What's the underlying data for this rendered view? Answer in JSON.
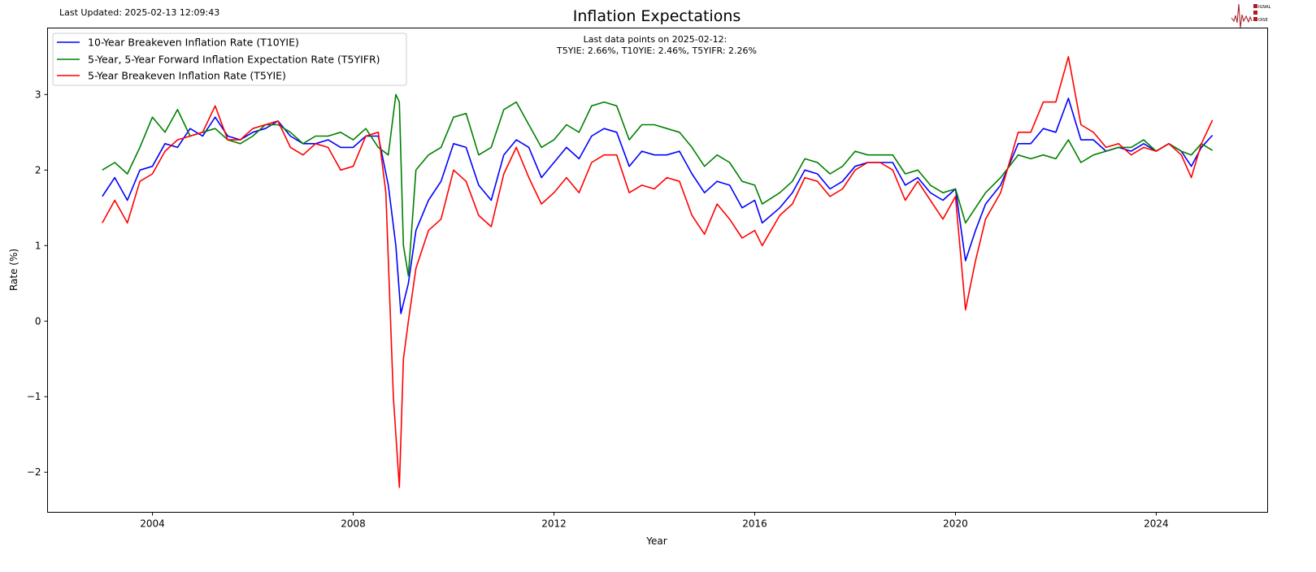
{
  "header": {
    "last_updated": "Last Updated: 2025-02-13 12:09:43",
    "logo_text": "SIGNAL 2 NOISE"
  },
  "chart_data": {
    "type": "line",
    "title": "Inflation Expectations",
    "xlabel": "Year",
    "ylabel": "Rate (%)",
    "xlim": [
      2001.91,
      2026.22
    ],
    "ylim": [
      -2.53,
      3.88
    ],
    "xticks": [
      2004,
      2008,
      2012,
      2016,
      2020,
      2024
    ],
    "xtick_labels": [
      "2004",
      "2008",
      "2012",
      "2016",
      "2020",
      "2024"
    ],
    "yticks": [
      -2,
      -1,
      0,
      1,
      2,
      3
    ],
    "ytick_labels": [
      "−2",
      "−1",
      "0",
      "1",
      "2",
      "3"
    ],
    "grid": false,
    "legend_position": "top-left",
    "annotation": {
      "line1": "Last data points on 2025-02-12:",
      "line2": "T5YIE: 2.66%, T10YIE: 2.46%, T5YIFR: 2.26%"
    },
    "series": [
      {
        "name": "10-Year Breakeven Inflation Rate (T10YIE)",
        "color": "#0000ff",
        "points": [
          [
            2003.0,
            1.65
          ],
          [
            2003.25,
            1.9
          ],
          [
            2003.5,
            1.6
          ],
          [
            2003.75,
            2.0
          ],
          [
            2004.0,
            2.05
          ],
          [
            2004.25,
            2.35
          ],
          [
            2004.5,
            2.3
          ],
          [
            2004.75,
            2.55
          ],
          [
            2005.0,
            2.45
          ],
          [
            2005.25,
            2.7
          ],
          [
            2005.5,
            2.45
          ],
          [
            2005.75,
            2.4
          ],
          [
            2006.0,
            2.5
          ],
          [
            2006.25,
            2.55
          ],
          [
            2006.5,
            2.65
          ],
          [
            2006.75,
            2.45
          ],
          [
            2007.0,
            2.35
          ],
          [
            2007.25,
            2.35
          ],
          [
            2007.5,
            2.4
          ],
          [
            2007.75,
            2.3
          ],
          [
            2008.0,
            2.3
          ],
          [
            2008.25,
            2.45
          ],
          [
            2008.5,
            2.45
          ],
          [
            2008.7,
            1.8
          ],
          [
            2008.85,
            1.0
          ],
          [
            2008.95,
            0.1
          ],
          [
            2009.1,
            0.5
          ],
          [
            2009.25,
            1.2
          ],
          [
            2009.5,
            1.6
          ],
          [
            2009.75,
            1.85
          ],
          [
            2010.0,
            2.35
          ],
          [
            2010.25,
            2.3
          ],
          [
            2010.5,
            1.8
          ],
          [
            2010.75,
            1.6
          ],
          [
            2011.0,
            2.2
          ],
          [
            2011.25,
            2.4
          ],
          [
            2011.5,
            2.3
          ],
          [
            2011.75,
            1.9
          ],
          [
            2012.0,
            2.1
          ],
          [
            2012.25,
            2.3
          ],
          [
            2012.5,
            2.15
          ],
          [
            2012.75,
            2.45
          ],
          [
            2013.0,
            2.55
          ],
          [
            2013.25,
            2.5
          ],
          [
            2013.5,
            2.05
          ],
          [
            2013.75,
            2.25
          ],
          [
            2014.0,
            2.2
          ],
          [
            2014.25,
            2.2
          ],
          [
            2014.5,
            2.25
          ],
          [
            2014.75,
            1.95
          ],
          [
            2015.0,
            1.7
          ],
          [
            2015.25,
            1.85
          ],
          [
            2015.5,
            1.8
          ],
          [
            2015.75,
            1.5
          ],
          [
            2016.0,
            1.6
          ],
          [
            2016.15,
            1.3
          ],
          [
            2016.5,
            1.5
          ],
          [
            2016.75,
            1.7
          ],
          [
            2017.0,
            2.0
          ],
          [
            2017.25,
            1.95
          ],
          [
            2017.5,
            1.75
          ],
          [
            2017.75,
            1.85
          ],
          [
            2018.0,
            2.05
          ],
          [
            2018.25,
            2.1
          ],
          [
            2018.5,
            2.1
          ],
          [
            2018.75,
            2.1
          ],
          [
            2019.0,
            1.8
          ],
          [
            2019.25,
            1.9
          ],
          [
            2019.5,
            1.7
          ],
          [
            2019.75,
            1.6
          ],
          [
            2020.0,
            1.75
          ],
          [
            2020.2,
            0.8
          ],
          [
            2020.4,
            1.2
          ],
          [
            2020.6,
            1.55
          ],
          [
            2020.9,
            1.8
          ],
          [
            2021.25,
            2.35
          ],
          [
            2021.5,
            2.35
          ],
          [
            2021.75,
            2.55
          ],
          [
            2022.0,
            2.5
          ],
          [
            2022.25,
            2.95
          ],
          [
            2022.5,
            2.4
          ],
          [
            2022.75,
            2.4
          ],
          [
            2023.0,
            2.25
          ],
          [
            2023.25,
            2.3
          ],
          [
            2023.5,
            2.25
          ],
          [
            2023.75,
            2.35
          ],
          [
            2024.0,
            2.25
          ],
          [
            2024.25,
            2.35
          ],
          [
            2024.5,
            2.25
          ],
          [
            2024.7,
            2.05
          ],
          [
            2024.9,
            2.3
          ],
          [
            2025.12,
            2.46
          ]
        ]
      },
      {
        "name": "5-Year, 5-Year Forward Inflation Expectation Rate (T5YIFR)",
        "color": "#008000",
        "points": [
          [
            2003.0,
            2.0
          ],
          [
            2003.25,
            2.1
          ],
          [
            2003.5,
            1.95
          ],
          [
            2003.75,
            2.3
          ],
          [
            2004.0,
            2.7
          ],
          [
            2004.25,
            2.5
          ],
          [
            2004.5,
            2.8
          ],
          [
            2004.75,
            2.45
          ],
          [
            2005.0,
            2.5
          ],
          [
            2005.25,
            2.55
          ],
          [
            2005.5,
            2.4
          ],
          [
            2005.75,
            2.35
          ],
          [
            2006.0,
            2.45
          ],
          [
            2006.25,
            2.6
          ],
          [
            2006.5,
            2.6
          ],
          [
            2006.75,
            2.5
          ],
          [
            2007.0,
            2.35
          ],
          [
            2007.25,
            2.45
          ],
          [
            2007.5,
            2.45
          ],
          [
            2007.75,
            2.5
          ],
          [
            2008.0,
            2.4
          ],
          [
            2008.25,
            2.55
          ],
          [
            2008.5,
            2.3
          ],
          [
            2008.7,
            2.2
          ],
          [
            2008.85,
            3.0
          ],
          [
            2008.92,
            2.9
          ],
          [
            2009.0,
            1.0
          ],
          [
            2009.1,
            0.6
          ],
          [
            2009.25,
            2.0
          ],
          [
            2009.5,
            2.2
          ],
          [
            2009.75,
            2.3
          ],
          [
            2010.0,
            2.7
          ],
          [
            2010.25,
            2.75
          ],
          [
            2010.5,
            2.2
          ],
          [
            2010.75,
            2.3
          ],
          [
            2011.0,
            2.8
          ],
          [
            2011.25,
            2.9
          ],
          [
            2011.5,
            2.6
          ],
          [
            2011.75,
            2.3
          ],
          [
            2012.0,
            2.4
          ],
          [
            2012.25,
            2.6
          ],
          [
            2012.5,
            2.5
          ],
          [
            2012.75,
            2.85
          ],
          [
            2013.0,
            2.9
          ],
          [
            2013.25,
            2.85
          ],
          [
            2013.5,
            2.4
          ],
          [
            2013.75,
            2.6
          ],
          [
            2014.0,
            2.6
          ],
          [
            2014.25,
            2.55
          ],
          [
            2014.5,
            2.5
          ],
          [
            2014.75,
            2.3
          ],
          [
            2015.0,
            2.05
          ],
          [
            2015.25,
            2.2
          ],
          [
            2015.5,
            2.1
          ],
          [
            2015.75,
            1.85
          ],
          [
            2016.0,
            1.8
          ],
          [
            2016.15,
            1.55
          ],
          [
            2016.5,
            1.7
          ],
          [
            2016.75,
            1.85
          ],
          [
            2017.0,
            2.15
          ],
          [
            2017.25,
            2.1
          ],
          [
            2017.5,
            1.95
          ],
          [
            2017.75,
            2.05
          ],
          [
            2018.0,
            2.25
          ],
          [
            2018.25,
            2.2
          ],
          [
            2018.5,
            2.2
          ],
          [
            2018.75,
            2.2
          ],
          [
            2019.0,
            1.95
          ],
          [
            2019.25,
            2.0
          ],
          [
            2019.5,
            1.8
          ],
          [
            2019.75,
            1.7
          ],
          [
            2020.0,
            1.75
          ],
          [
            2020.2,
            1.3
          ],
          [
            2020.4,
            1.5
          ],
          [
            2020.6,
            1.7
          ],
          [
            2020.9,
            1.9
          ],
          [
            2021.25,
            2.2
          ],
          [
            2021.5,
            2.15
          ],
          [
            2021.75,
            2.2
          ],
          [
            2022.0,
            2.15
          ],
          [
            2022.25,
            2.4
          ],
          [
            2022.5,
            2.1
          ],
          [
            2022.75,
            2.2
          ],
          [
            2023.0,
            2.25
          ],
          [
            2023.25,
            2.3
          ],
          [
            2023.5,
            2.3
          ],
          [
            2023.75,
            2.4
          ],
          [
            2024.0,
            2.25
          ],
          [
            2024.25,
            2.35
          ],
          [
            2024.5,
            2.25
          ],
          [
            2024.7,
            2.2
          ],
          [
            2024.9,
            2.35
          ],
          [
            2025.12,
            2.26
          ]
        ]
      },
      {
        "name": "5-Year Breakeven Inflation Rate (T5YIE)",
        "color": "#ff0000",
        "points": [
          [
            2003.0,
            1.3
          ],
          [
            2003.25,
            1.6
          ],
          [
            2003.5,
            1.3
          ],
          [
            2003.75,
            1.85
          ],
          [
            2004.0,
            1.95
          ],
          [
            2004.25,
            2.25
          ],
          [
            2004.5,
            2.4
          ],
          [
            2004.75,
            2.45
          ],
          [
            2005.0,
            2.5
          ],
          [
            2005.25,
            2.85
          ],
          [
            2005.5,
            2.4
          ],
          [
            2005.75,
            2.4
          ],
          [
            2006.0,
            2.55
          ],
          [
            2006.25,
            2.6
          ],
          [
            2006.5,
            2.65
          ],
          [
            2006.75,
            2.3
          ],
          [
            2007.0,
            2.2
          ],
          [
            2007.25,
            2.35
          ],
          [
            2007.5,
            2.3
          ],
          [
            2007.75,
            2.0
          ],
          [
            2008.0,
            2.05
          ],
          [
            2008.25,
            2.45
          ],
          [
            2008.5,
            2.5
          ],
          [
            2008.65,
            1.7
          ],
          [
            2008.8,
            -1.0
          ],
          [
            2008.92,
            -2.2
          ],
          [
            2009.0,
            -0.5
          ],
          [
            2009.1,
            0.0
          ],
          [
            2009.25,
            0.7
          ],
          [
            2009.5,
            1.2
          ],
          [
            2009.75,
            1.35
          ],
          [
            2010.0,
            2.0
          ],
          [
            2010.25,
            1.85
          ],
          [
            2010.5,
            1.4
          ],
          [
            2010.75,
            1.25
          ],
          [
            2011.0,
            1.95
          ],
          [
            2011.25,
            2.3
          ],
          [
            2011.5,
            1.9
          ],
          [
            2011.75,
            1.55
          ],
          [
            2012.0,
            1.7
          ],
          [
            2012.25,
            1.9
          ],
          [
            2012.5,
            1.7
          ],
          [
            2012.75,
            2.1
          ],
          [
            2013.0,
            2.2
          ],
          [
            2013.25,
            2.2
          ],
          [
            2013.5,
            1.7
          ],
          [
            2013.75,
            1.8
          ],
          [
            2014.0,
            1.75
          ],
          [
            2014.25,
            1.9
          ],
          [
            2014.5,
            1.85
          ],
          [
            2014.75,
            1.4
          ],
          [
            2015.0,
            1.15
          ],
          [
            2015.25,
            1.55
          ],
          [
            2015.5,
            1.35
          ],
          [
            2015.75,
            1.1
          ],
          [
            2016.0,
            1.2
          ],
          [
            2016.15,
            1.0
          ],
          [
            2016.5,
            1.4
          ],
          [
            2016.75,
            1.55
          ],
          [
            2017.0,
            1.9
          ],
          [
            2017.25,
            1.85
          ],
          [
            2017.5,
            1.65
          ],
          [
            2017.75,
            1.75
          ],
          [
            2018.0,
            2.0
          ],
          [
            2018.25,
            2.1
          ],
          [
            2018.5,
            2.1
          ],
          [
            2018.75,
            2.0
          ],
          [
            2019.0,
            1.6
          ],
          [
            2019.25,
            1.85
          ],
          [
            2019.5,
            1.6
          ],
          [
            2019.75,
            1.35
          ],
          [
            2020.0,
            1.65
          ],
          [
            2020.2,
            0.15
          ],
          [
            2020.4,
            0.8
          ],
          [
            2020.6,
            1.35
          ],
          [
            2020.9,
            1.7
          ],
          [
            2021.25,
            2.5
          ],
          [
            2021.5,
            2.5
          ],
          [
            2021.75,
            2.9
          ],
          [
            2022.0,
            2.9
          ],
          [
            2022.25,
            3.5
          ],
          [
            2022.5,
            2.6
          ],
          [
            2022.75,
            2.5
          ],
          [
            2023.0,
            2.3
          ],
          [
            2023.25,
            2.35
          ],
          [
            2023.5,
            2.2
          ],
          [
            2023.75,
            2.3
          ],
          [
            2024.0,
            2.25
          ],
          [
            2024.25,
            2.35
          ],
          [
            2024.5,
            2.2
          ],
          [
            2024.7,
            1.9
          ],
          [
            2024.9,
            2.35
          ],
          [
            2025.12,
            2.66
          ]
        ]
      }
    ]
  }
}
